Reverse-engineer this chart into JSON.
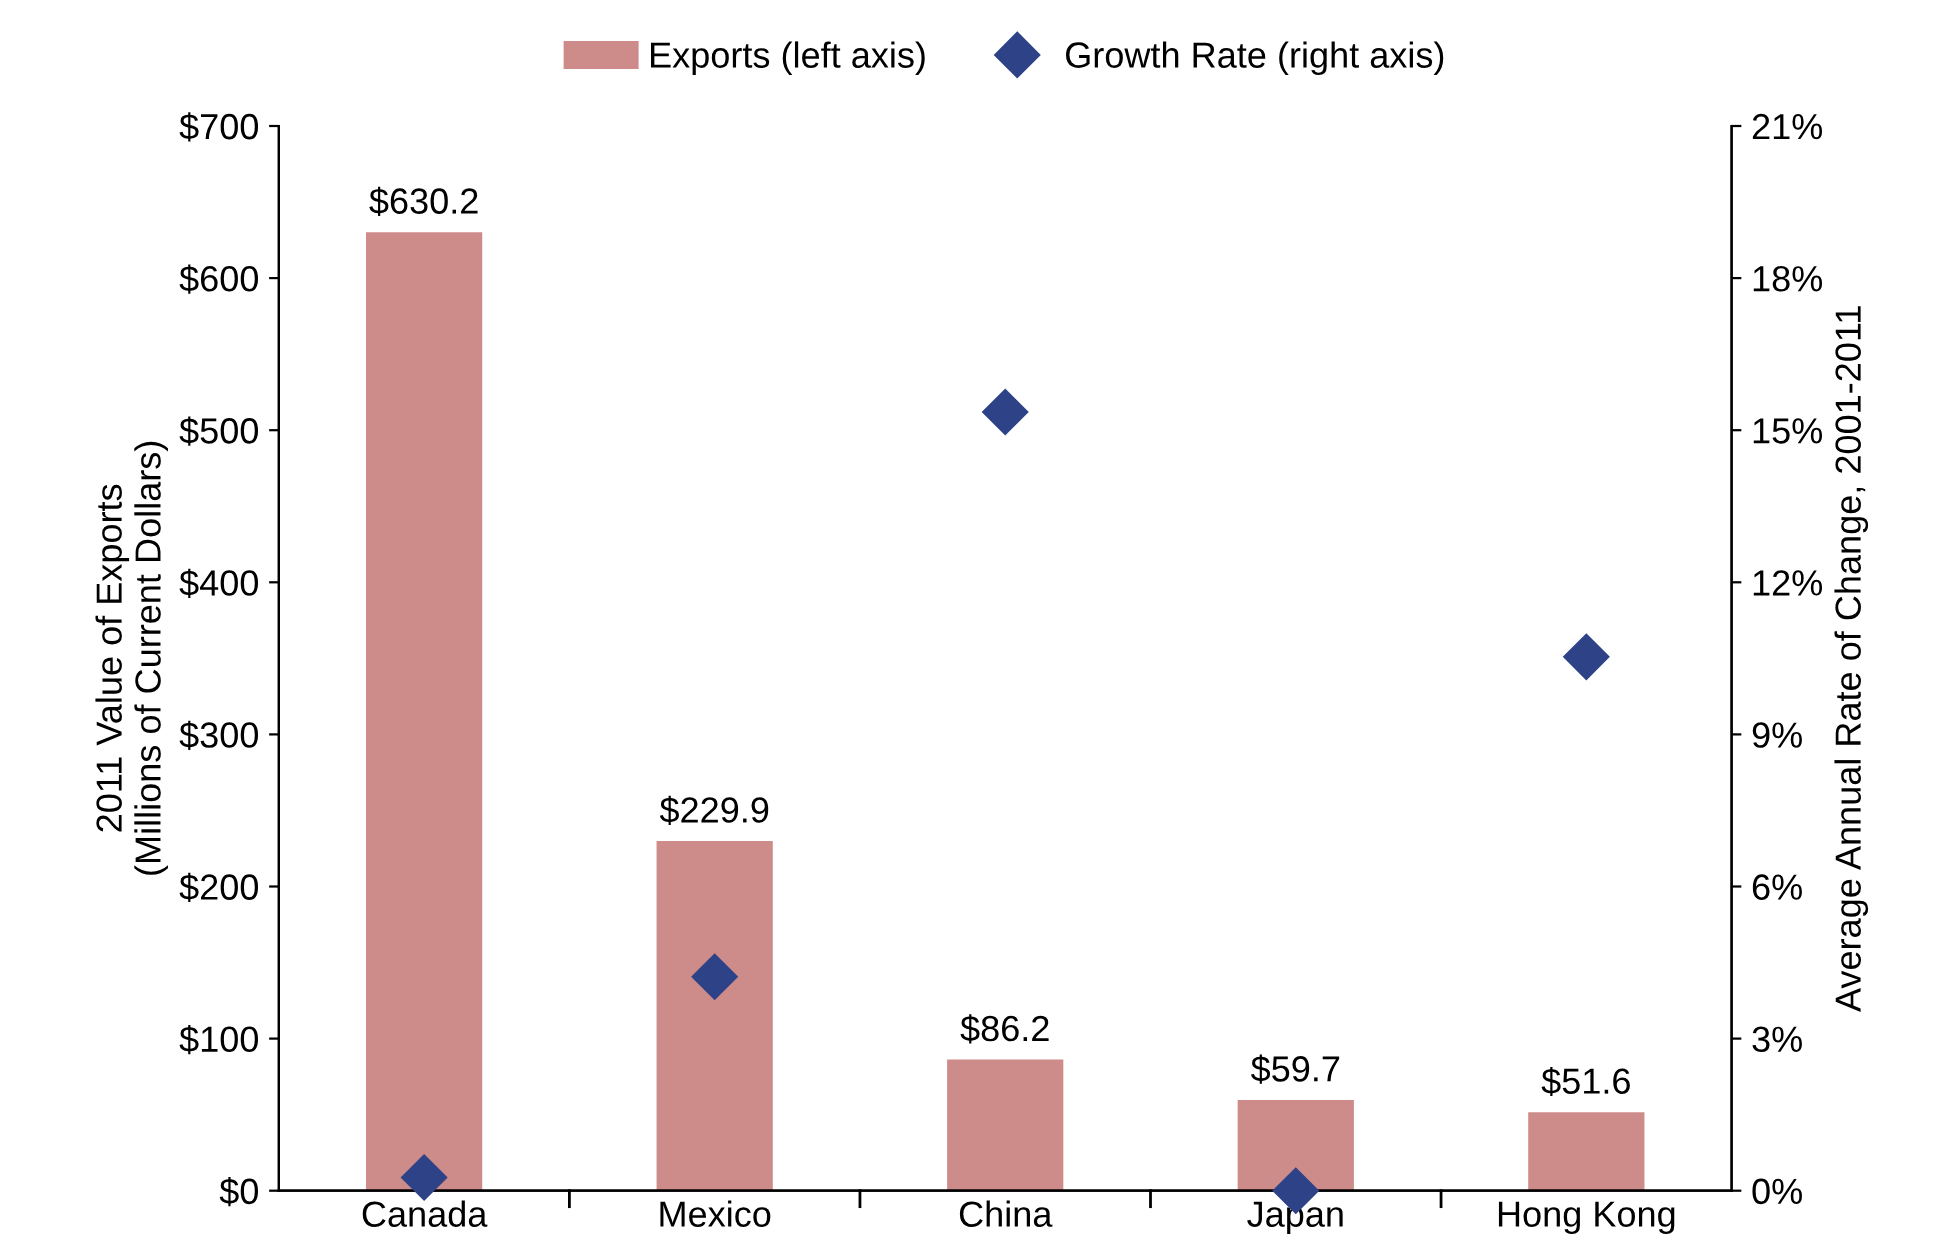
{
  "chart_data": {
    "type": "bar",
    "categories": [
      "Canada",
      "Mexico",
      "China",
      "Japan",
      "Hong Kong"
    ],
    "ylabel": "2011 Value of Exports\n(Millions of Current Dollars)",
    "y2label": "Average Annual Rate of Change, 2001-2011",
    "series": [
      {
        "name": "Exports (left axis)",
        "color": "#cd8b8a",
        "values": [
          630.2,
          229.9,
          86.2,
          59.7,
          51.6
        ],
        "value_labels": [
          "$630.2",
          "$229.9",
          "$86.2",
          "$59.7",
          "$51.6"
        ]
      },
      {
        "name": "Growth Rate (right axis)",
        "type": "scatter",
        "axis": "y2",
        "color": "#2e4387",
        "marker": "diamond",
        "values": [
          0.26,
          4.22,
          15.36,
          0.0,
          10.53
        ]
      }
    ],
    "ylim": [
      0,
      700
    ],
    "yticks": [
      {
        "value": 0,
        "label": "$0"
      },
      {
        "value": 100,
        "label": "$100"
      },
      {
        "value": 200,
        "label": "$200"
      },
      {
        "value": 300,
        "label": "$300"
      },
      {
        "value": 400,
        "label": "$400"
      },
      {
        "value": 500,
        "label": "$500"
      },
      {
        "value": 600,
        "label": "$600"
      },
      {
        "value": 700,
        "label": "$700"
      }
    ],
    "y2lim": [
      0,
      21
    ],
    "y2ticks": [
      {
        "value": 0,
        "label": "0%"
      },
      {
        "value": 3,
        "label": "3%"
      },
      {
        "value": 6,
        "label": "6%"
      },
      {
        "value": 9,
        "label": "9%"
      },
      {
        "value": 12,
        "label": "12%"
      },
      {
        "value": 15,
        "label": "15%"
      },
      {
        "value": 18,
        "label": "18%"
      },
      {
        "value": 21,
        "label": "21%"
      }
    ],
    "legend": "top",
    "grid": false
  }
}
